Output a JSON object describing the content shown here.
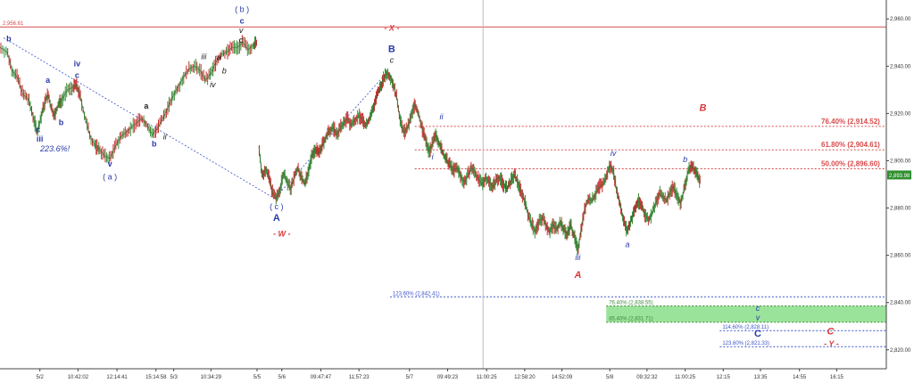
{
  "chart_data": {
    "type": "candlestick",
    "title": "",
    "xlabel": "",
    "ylabel": "",
    "ylim": [
      2812,
      2968
    ],
    "y_ticks": [
      "2,960.00",
      "2,940.00",
      "2,920.00",
      "2,900.00",
      "2,880.00",
      "2,860.00",
      "2,840.00",
      "2,820.00"
    ],
    "y_tick_values": [
      2960,
      2940,
      2920,
      2900,
      2880,
      2860,
      2840,
      2820
    ],
    "x_range": [
      0,
      1000
    ],
    "x_ticks": [
      {
        "x": 45,
        "label": "5/2"
      },
      {
        "x": 88,
        "label": "10:42:02"
      },
      {
        "x": 132,
        "label": "12:14:41"
      },
      {
        "x": 176,
        "label": "15:14:58"
      },
      {
        "x": 196,
        "label": "5/3"
      },
      {
        "x": 238,
        "label": "10:34:29"
      },
      {
        "x": 290,
        "label": "5/5"
      },
      {
        "x": 318,
        "label": "5/6"
      },
      {
        "x": 362,
        "label": "09:47:47"
      },
      {
        "x": 405,
        "label": "11:57:23"
      },
      {
        "x": 462,
        "label": "5/7"
      },
      {
        "x": 505,
        "label": "09:49:23"
      },
      {
        "x": 549,
        "label": "11:00:25"
      },
      {
        "x": 592,
        "label": "12:58:20"
      },
      {
        "x": 634,
        "label": "14:52:09"
      },
      {
        "x": 688,
        "label": "5/8"
      },
      {
        "x": 730,
        "label": "09:32:32"
      },
      {
        "x": 773,
        "label": "11:00:25"
      },
      {
        "x": 816,
        "label": "12:15"
      },
      {
        "x": 858,
        "label": "13:35"
      },
      {
        "x": 902,
        "label": "14:55"
      },
      {
        "x": 944,
        "label": "16:15"
      }
    ],
    "price_path": [
      [
        0,
        2948
      ],
      [
        8,
        2946
      ],
      [
        14,
        2938
      ],
      [
        20,
        2935
      ],
      [
        26,
        2928
      ],
      [
        32,
        2926
      ],
      [
        38,
        2918
      ],
      [
        42,
        2912
      ],
      [
        46,
        2918
      ],
      [
        50,
        2924
      ],
      [
        54,
        2928
      ],
      [
        58,
        2922
      ],
      [
        62,
        2919
      ],
      [
        66,
        2924
      ],
      [
        70,
        2926
      ],
      [
        76,
        2930
      ],
      [
        82,
        2931
      ],
      [
        86,
        2932
      ],
      [
        90,
        2928
      ],
      [
        96,
        2918
      ],
      [
        102,
        2910
      ],
      [
        108,
        2906
      ],
      [
        112,
        2905
      ],
      [
        118,
        2902
      ],
      [
        124,
        2901
      ],
      [
        130,
        2906
      ],
      [
        136,
        2910
      ],
      [
        142,
        2912
      ],
      [
        148,
        2914
      ],
      [
        154,
        2916
      ],
      [
        160,
        2918
      ],
      [
        166,
        2915
      ],
      [
        172,
        2911
      ],
      [
        178,
        2914
      ],
      [
        184,
        2918
      ],
      [
        190,
        2923
      ],
      [
        196,
        2928
      ],
      [
        202,
        2932
      ],
      [
        208,
        2936
      ],
      [
        214,
        2939
      ],
      [
        220,
        2940
      ],
      [
        226,
        2938
      ],
      [
        232,
        2934
      ],
      [
        238,
        2937
      ],
      [
        244,
        2942
      ],
      [
        250,
        2945
      ],
      [
        256,
        2946
      ],
      [
        262,
        2948
      ],
      [
        268,
        2948
      ],
      [
        274,
        2950
      ],
      [
        280,
        2947
      ],
      [
        286,
        2949
      ],
      [
        290,
        2950
      ]
    ],
    "price_path_2": [
      [
        292,
        2906
      ],
      [
        296,
        2893
      ],
      [
        300,
        2897
      ],
      [
        304,
        2892
      ],
      [
        308,
        2886
      ],
      [
        312,
        2884
      ],
      [
        316,
        2888
      ],
      [
        320,
        2895
      ],
      [
        324,
        2891
      ],
      [
        328,
        2888
      ],
      [
        332,
        2893
      ],
      [
        336,
        2897
      ],
      [
        340,
        2893
      ],
      [
        344,
        2890
      ],
      [
        348,
        2896
      ],
      [
        352,
        2902
      ],
      [
        356,
        2905
      ],
      [
        360,
        2903
      ],
      [
        364,
        2907
      ],
      [
        368,
        2910
      ],
      [
        372,
        2913
      ],
      [
        376,
        2914
      ],
      [
        380,
        2911
      ],
      [
        384,
        2914
      ],
      [
        388,
        2916
      ],
      [
        392,
        2918
      ],
      [
        396,
        2915
      ],
      [
        400,
        2917
      ],
      [
        404,
        2919
      ],
      [
        408,
        2918
      ],
      [
        412,
        2915
      ],
      [
        416,
        2917
      ],
      [
        420,
        2921
      ],
      [
        424,
        2926
      ],
      [
        428,
        2930
      ],
      [
        432,
        2934
      ],
      [
        436,
        2937
      ],
      [
        440,
        2936
      ],
      [
        444,
        2932
      ],
      [
        448,
        2926
      ],
      [
        452,
        2916
      ],
      [
        456,
        2912
      ],
      [
        460,
        2914
      ],
      [
        464,
        2919
      ],
      [
        468,
        2924
      ],
      [
        472,
        2920
      ],
      [
        476,
        2914
      ],
      [
        480,
        2909
      ],
      [
        484,
        2904
      ],
      [
        488,
        2907
      ],
      [
        492,
        2911
      ],
      [
        496,
        2907
      ],
      [
        500,
        2903
      ],
      [
        504,
        2900
      ],
      [
        508,
        2898
      ],
      [
        512,
        2896
      ],
      [
        516,
        2897
      ],
      [
        520,
        2893
      ],
      [
        524,
        2891
      ],
      [
        528,
        2894
      ],
      [
        532,
        2897
      ],
      [
        536,
        2895
      ],
      [
        540,
        2892
      ],
      [
        544,
        2890
      ],
      [
        548,
        2893
      ],
      [
        552,
        2891
      ],
      [
        556,
        2889
      ],
      [
        560,
        2892
      ],
      [
        564,
        2893
      ],
      [
        568,
        2890
      ],
      [
        572,
        2888
      ],
      [
        576,
        2891
      ],
      [
        580,
        2894
      ],
      [
        584,
        2891
      ],
      [
        588,
        2887
      ],
      [
        592,
        2883
      ],
      [
        596,
        2877
      ],
      [
        600,
        2873
      ],
      [
        604,
        2870
      ],
      [
        608,
        2874
      ],
      [
        612,
        2876
      ],
      [
        616,
        2873
      ],
      [
        620,
        2870
      ],
      [
        624,
        2873
      ],
      [
        628,
        2871
      ],
      [
        632,
        2874
      ],
      [
        636,
        2871
      ],
      [
        640,
        2869
      ],
      [
        644,
        2873
      ],
      [
        648,
        2868
      ],
      [
        652,
        2862
      ],
      [
        656,
        2872
      ],
      [
        660,
        2880
      ],
      [
        664,
        2884
      ],
      [
        668,
        2883
      ],
      [
        672,
        2886
      ],
      [
        676,
        2889
      ],
      [
        680,
        2890
      ],
      [
        684,
        2893
      ],
      [
        688,
        2898
      ],
      [
        692,
        2896
      ],
      [
        696,
        2887
      ],
      [
        700,
        2881
      ],
      [
        704,
        2874
      ],
      [
        708,
        2870
      ],
      [
        712,
        2875
      ],
      [
        716,
        2879
      ],
      [
        720,
        2883
      ],
      [
        724,
        2881
      ],
      [
        728,
        2877
      ],
      [
        732,
        2875
      ],
      [
        736,
        2878
      ],
      [
        740,
        2882
      ],
      [
        744,
        2886
      ],
      [
        748,
        2885
      ],
      [
        752,
        2883
      ],
      [
        756,
        2887
      ],
      [
        760,
        2889
      ],
      [
        764,
        2885
      ],
      [
        768,
        2882
      ],
      [
        772,
        2888
      ],
      [
        776,
        2895
      ],
      [
        780,
        2898
      ],
      [
        784,
        2896
      ],
      [
        788,
        2893
      ],
      [
        790,
        2891
      ]
    ],
    "trend_lines": [
      {
        "from": [
          4,
          2952
        ],
        "to": [
          310,
          2884
        ],
        "color": "#3b55c9"
      },
      {
        "from": [
          310,
          2884
        ],
        "to": [
          438,
          2938
        ],
        "color": "#3b55c9"
      }
    ],
    "hlines": [
      {
        "y": 2956.61,
        "label": "2,956.61",
        "color": "#d94a4a",
        "style": "solid",
        "x0": 0
      },
      {
        "y": 2914.52,
        "label": "76.40% (2,914.52)",
        "color": "#d94a4a",
        "style": "dashed",
        "x0": 468
      },
      {
        "y": 2904.61,
        "label": "61.80% (2,904.61)",
        "color": "#d94a4a",
        "style": "dashed",
        "x0": 468
      },
      {
        "y": 2896.6,
        "label": "50.00% (2,896.60)",
        "color": "#d94a4a",
        "style": "dashed",
        "x0": 468
      },
      {
        "y": 2842.41,
        "label": "123.60% (2,842.41)",
        "color": "#3b55c9",
        "style": "dashed",
        "x0": 440
      },
      {
        "y": 2838.55,
        "label": "76.40% (2,838.55)",
        "color": "#3f8a3f",
        "style": "dashed",
        "x0": 684
      },
      {
        "y": 2831.71,
        "label": "85.40% (2,831.71)",
        "color": "#3f8a3f",
        "style": "dashed",
        "x0": 684
      },
      {
        "y": 2828.11,
        "label": "114.60% (2,828.11)",
        "color": "#3b55c9",
        "style": "dashed",
        "x0": 812
      },
      {
        "y": 2821.33,
        "label": "123.60% (2,821.33)",
        "color": "#3b55c9",
        "style": "dashed",
        "x0": 812
      }
    ],
    "zone": {
      "y_top": 2838.55,
      "y_bottom": 2831.71,
      "x0": 684,
      "color": "#8fe08f"
    },
    "current_price": {
      "label": "2,893.98",
      "y": 2893.98
    },
    "vline_x": 545,
    "annotations": [
      {
        "text": "b",
        "x": 10,
        "y": 2950.5,
        "color": "#2b3aa8",
        "bold": true
      },
      {
        "text": "a",
        "x": 54,
        "y": 2933,
        "color": "#2b3aa8",
        "bold": true
      },
      {
        "text": "iv",
        "x": 87,
        "y": 2940,
        "color": "#2b3aa8",
        "bold": true
      },
      {
        "text": "c",
        "x": 87,
        "y": 2935,
        "color": "#2b3aa8",
        "bold": true
      },
      {
        "text": "b",
        "x": 69,
        "y": 2915,
        "color": "#2b3aa8",
        "bold": true
      },
      {
        "text": "c",
        "x": 43,
        "y": 2912,
        "color": "#2b3aa8",
        "bold": true
      },
      {
        "text": "iii",
        "x": 45,
        "y": 2908,
        "color": "#2b3aa8",
        "bold": true
      },
      {
        "text": "223.6%!",
        "x": 62,
        "y": 2904,
        "color": "#2b3aa8",
        "italic": true
      },
      {
        "text": "v",
        "x": 124,
        "y": 2897.5,
        "color": "#2b3aa8",
        "bold": true
      },
      {
        "text": "( a )",
        "x": 124,
        "y": 2892,
        "color": "#2b3aa8",
        "bold": false
      },
      {
        "text": "a",
        "x": 165,
        "y": 2922,
        "color": "#222222",
        "bold": true
      },
      {
        "text": "ii",
        "x": 186,
        "y": 2909,
        "color": "#222222",
        "italic": true
      },
      {
        "text": "b",
        "x": 174,
        "y": 2906,
        "color": "#2b3aa8",
        "bold": true
      },
      {
        "text": "iii",
        "x": 230,
        "y": 2943,
        "color": "#222222",
        "italic": true
      },
      {
        "text": "a",
        "x": 247,
        "y": 2942.5,
        "color": "#222222",
        "italic": true
      },
      {
        "text": "b",
        "x": 253,
        "y": 2937,
        "color": "#222222",
        "italic": true
      },
      {
        "text": "iv",
        "x": 240,
        "y": 2931,
        "color": "#222222",
        "italic": true
      },
      {
        "text": "c",
        "x": 272,
        "y": 2950,
        "color": "#222222",
        "italic": true
      },
      {
        "text": "v",
        "x": 272,
        "y": 2954,
        "color": "#222222",
        "italic": true
      },
      {
        "text": "c",
        "x": 273,
        "y": 2958,
        "color": "#2b3aa8",
        "bold": true
      },
      {
        "text": "( b )",
        "x": 273,
        "y": 2963,
        "color": "#2b3aa8",
        "bold": false
      },
      {
        "text": "( c )",
        "x": 312,
        "y": 2879.5,
        "color": "#2b3aa8",
        "bold": false
      },
      {
        "text": "A",
        "x": 312,
        "y": 2874.5,
        "color": "#2b3aa8",
        "bold": true
      },
      {
        "text": "- W -",
        "x": 318,
        "y": 2868,
        "color": "#d93a3a",
        "bold": true,
        "italic": true
      },
      {
        "text": "- X -",
        "x": 442,
        "y": 2955,
        "color": "#d93a3a",
        "bold": true,
        "italic": true
      },
      {
        "text": "B",
        "x": 442,
        "y": 2946,
        "color": "#2b3aa8",
        "bold": true
      },
      {
        "text": "c",
        "x": 442,
        "y": 2941.5,
        "color": "#222222",
        "italic": true
      },
      {
        "text": "ii",
        "x": 498,
        "y": 2917.5,
        "color": "#2b3aa8",
        "italic": true
      },
      {
        "text": "i",
        "x": 488,
        "y": 2900.5,
        "color": "#2b3aa8",
        "italic": true
      },
      {
        "text": "iii",
        "x": 652,
        "y": 2858,
        "color": "#2b3aa8",
        "italic": true
      },
      {
        "text": "A",
        "x": 652,
        "y": 2850.5,
        "color": "#d93a3a",
        "bold": true,
        "italic": true
      },
      {
        "text": "iv",
        "x": 692,
        "y": 2902,
        "color": "#2b3aa8",
        "italic": true
      },
      {
        "text": "a",
        "x": 708,
        "y": 2863.5,
        "color": "#2b3aa8",
        "italic": true
      },
      {
        "text": "b",
        "x": 773,
        "y": 2899.5,
        "color": "#2b3aa8",
        "italic": true
      },
      {
        "text": "B",
        "x": 793,
        "y": 2921,
        "color": "#d93a3a",
        "bold": true,
        "italic": true
      },
      {
        "text": "c",
        "x": 855,
        "y": 2836.5,
        "color": "#2b3aa8",
        "italic": true
      },
      {
        "text": "v",
        "x": 855,
        "y": 2832.5,
        "color": "#2b3aa8",
        "italic": true
      },
      {
        "text": "C",
        "x": 855,
        "y": 2825.5,
        "color": "#2b3aa8",
        "bold": true
      },
      {
        "text": "C",
        "x": 937,
        "y": 2826.5,
        "color": "#d93a3a",
        "bold": true,
        "italic": true
      },
      {
        "text": "- Y -",
        "x": 938,
        "y": 2821.5,
        "color": "#d93a3a",
        "bold": true,
        "italic": true
      }
    ]
  }
}
